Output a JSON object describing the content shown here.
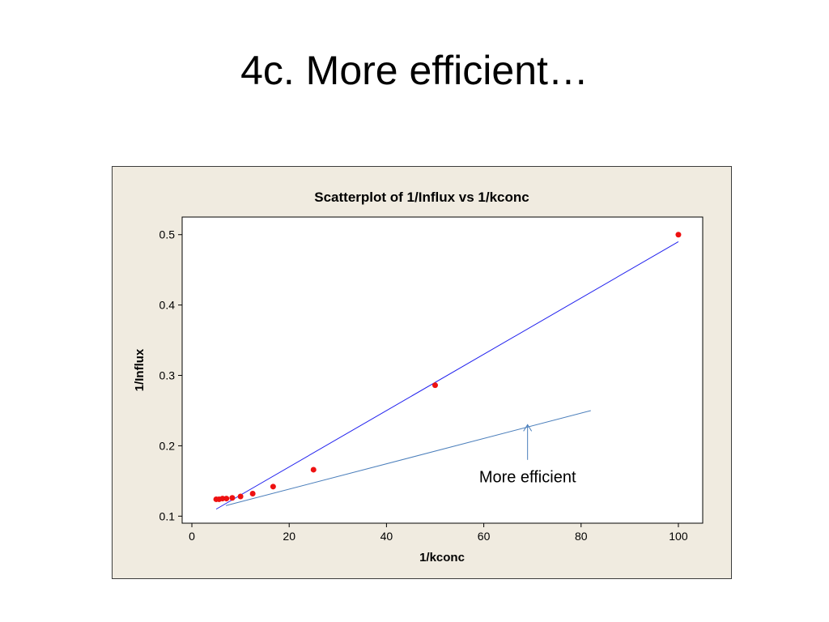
{
  "slide": {
    "title": "4c. More efficient…"
  },
  "chart_data": {
    "type": "scatter",
    "title": "Scatterplot of 1/Influx vs 1/kconc",
    "xlabel": "1/kconc",
    "ylabel": "1/Influx",
    "xlim": [
      -2,
      105
    ],
    "ylim": [
      0.09,
      0.525
    ],
    "xticks": [
      0,
      20,
      40,
      60,
      80,
      100
    ],
    "yticks": [
      0.1,
      0.2,
      0.3,
      0.4,
      0.5
    ],
    "ytick_labels": [
      "0.1",
      "0.2",
      "0.3",
      "0.4",
      "0.5"
    ],
    "grid": false,
    "points": [
      {
        "x": 5,
        "y": 0.124
      },
      {
        "x": 5.6,
        "y": 0.124
      },
      {
        "x": 6.3,
        "y": 0.125
      },
      {
        "x": 7.1,
        "y": 0.125
      },
      {
        "x": 8.3,
        "y": 0.126
      },
      {
        "x": 10,
        "y": 0.128
      },
      {
        "x": 12.5,
        "y": 0.132
      },
      {
        "x": 16.7,
        "y": 0.142
      },
      {
        "x": 25,
        "y": 0.166
      },
      {
        "x": 50,
        "y": 0.286
      },
      {
        "x": 100,
        "y": 0.5
      }
    ],
    "fit_line": {
      "x1": 5,
      "y1": 0.11,
      "x2": 100,
      "y2": 0.49
    },
    "annotation": {
      "text": "More efficient",
      "line": {
        "x1": 7,
        "y1": 0.115,
        "x2": 82,
        "y2": 0.25
      },
      "arrow": {
        "x": 69,
        "y_from": 0.18,
        "y_to": 0.23
      },
      "text_x": 69,
      "text_y": 0.148
    },
    "colors": {
      "points": "#ee1111",
      "fit_line": "#2020ee",
      "annotation_line": "#4a7ebb",
      "frame_bg": "#f0ebe0",
      "plot_bg": "#ffffff"
    }
  }
}
